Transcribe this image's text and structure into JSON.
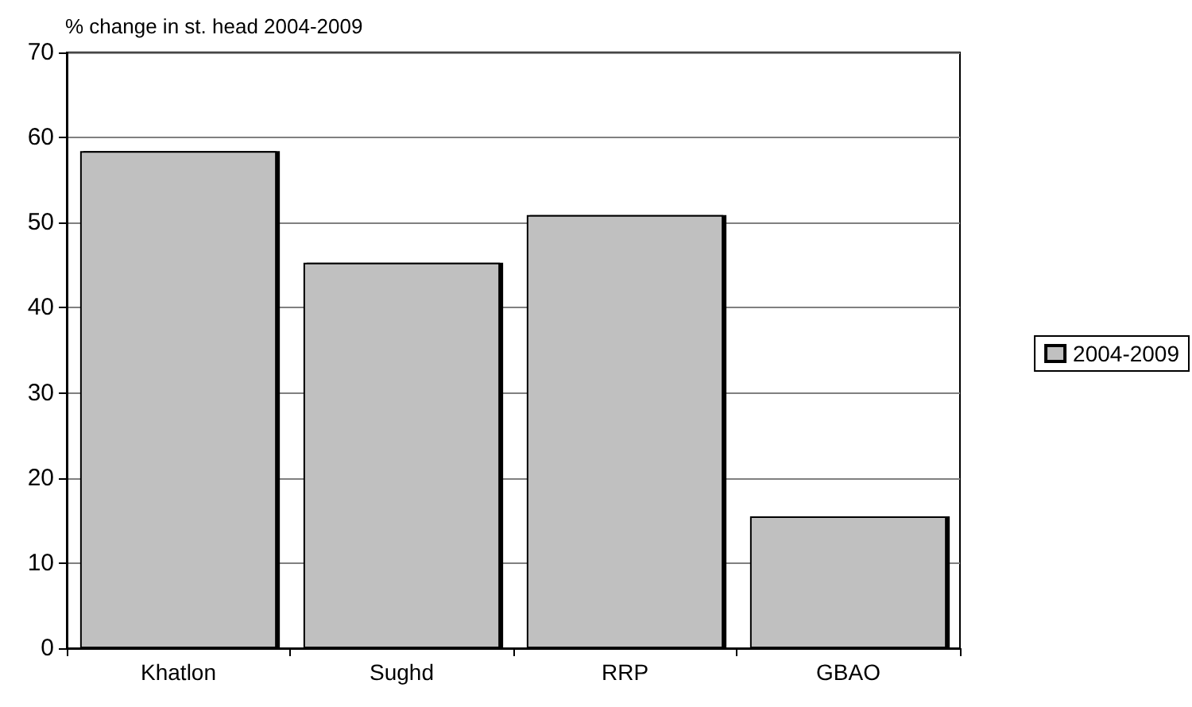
{
  "chart_data": {
    "type": "bar",
    "ylabel": "% change in st. head 2004-2009",
    "categories": [
      "Khatlon",
      "Sughd",
      "RRP",
      "GBAO"
    ],
    "series": [
      {
        "name": "2004-2009",
        "color": "#c0c0c0",
        "values": [
          58.4,
          45.3,
          50.9,
          15.5
        ]
      }
    ],
    "ylim": [
      0,
      70
    ],
    "yticks": [
      0,
      10,
      20,
      30,
      40,
      50,
      60,
      70
    ],
    "grid": "y",
    "legend": "right"
  }
}
